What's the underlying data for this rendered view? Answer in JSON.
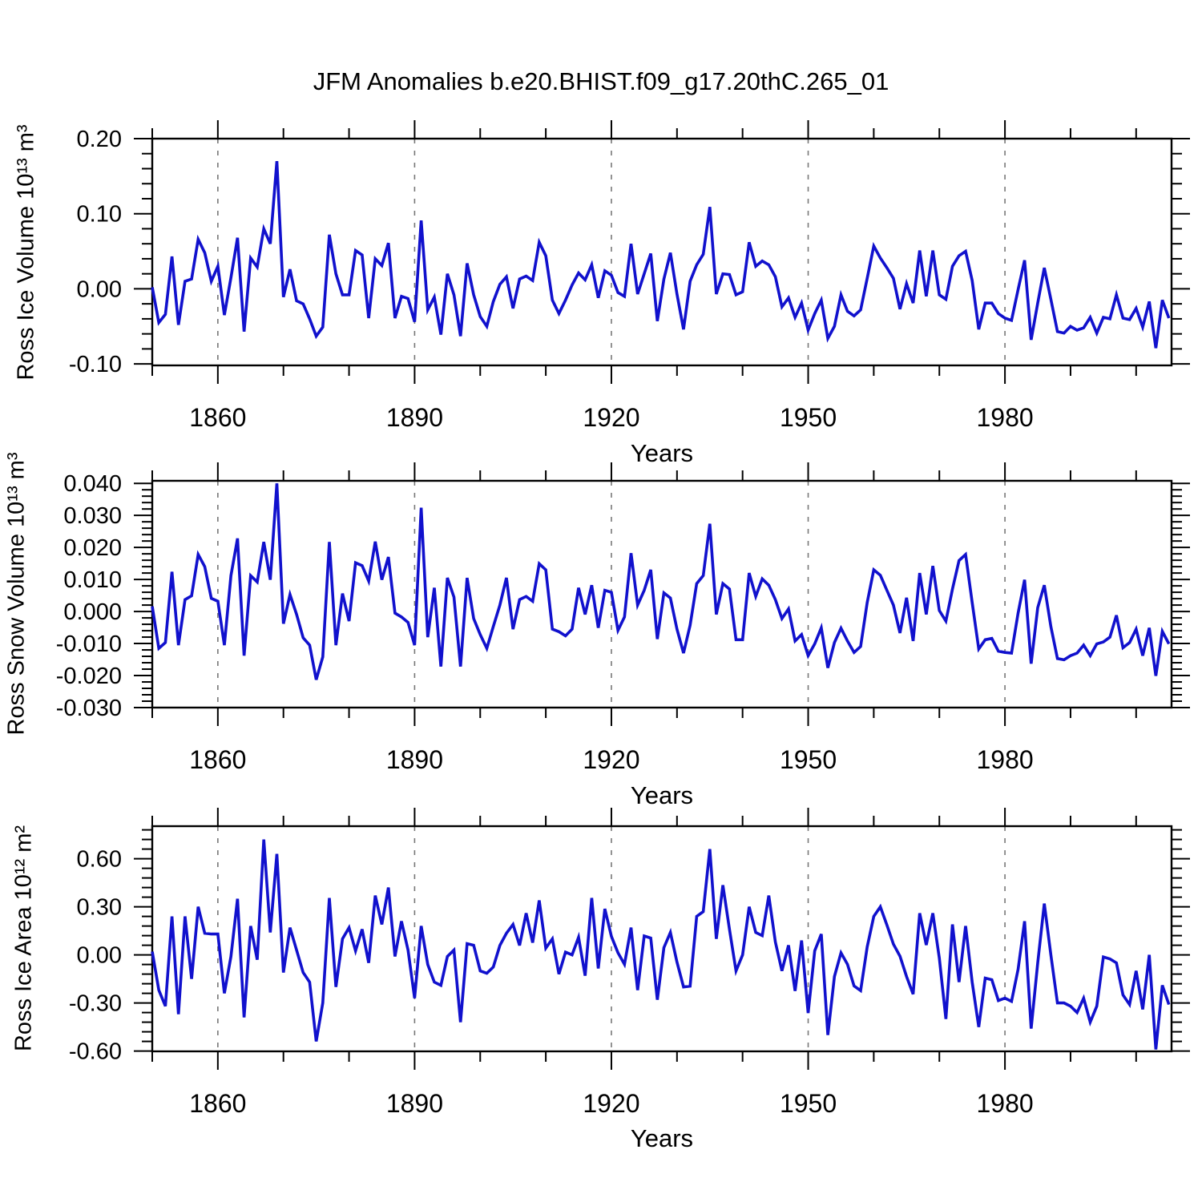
{
  "title": "JFM Anomalies b.e20.BHIST.f09_g17.20thC.265_01",
  "colors": {
    "line": "#1111cd",
    "frame": "#000000",
    "grid": "#787878",
    "background": "#ffffff",
    "text": "#000000"
  },
  "x_axis": {
    "label": "Years",
    "major_ticks": [
      1860,
      1890,
      1920,
      1950,
      1980
    ],
    "major_tick_labels": [
      "1860",
      "1890",
      "1920",
      "1950",
      "1980"
    ],
    "minor_tick_step": 10,
    "range": [
      1850,
      2005.4
    ],
    "dashed_gridlines_at": [
      1860,
      1890,
      1920,
      1950,
      1980
    ]
  },
  "chart_data": [
    {
      "type": "line",
      "ylabel": "Ross Ice Volume 10¹³ m³",
      "xlabel": "Years",
      "x_start": 1850,
      "x_step": 1,
      "ylim": [
        -0.102,
        0.2
      ],
      "yticks": [
        0.2,
        0.1,
        0.0,
        -0.1
      ],
      "ytick_labels": [
        "0.20",
        "0.10",
        "0.00",
        "-0.10"
      ],
      "y_minor_step": 0.02,
      "y_minor_range": [
        -0.1,
        0.2
      ],
      "values": [
        0.002,
        -0.045,
        -0.034,
        0.043,
        -0.048,
        0.01,
        0.013,
        0.066,
        0.048,
        0.01,
        0.03,
        -0.035,
        0.015,
        0.068,
        -0.057,
        0.041,
        0.029,
        0.08,
        0.06,
        0.17,
        -0.011,
        0.026,
        -0.016,
        -0.02,
        -0.04,
        -0.063,
        -0.051,
        0.072,
        0.02,
        -0.008,
        -0.008,
        0.051,
        0.045,
        -0.039,
        0.04,
        0.031,
        0.061,
        -0.039,
        -0.01,
        -0.013,
        -0.044,
        0.091,
        -0.028,
        -0.011,
        -0.061,
        0.02,
        -0.008,
        -0.063,
        0.034,
        -0.008,
        -0.037,
        -0.05,
        -0.017,
        0.006,
        0.016,
        -0.026,
        0.013,
        0.017,
        0.011,
        0.062,
        0.044,
        -0.015,
        -0.033,
        -0.015,
        0.005,
        0.021,
        0.012,
        0.032,
        -0.012,
        0.024,
        0.018,
        -0.005,
        -0.01,
        0.06,
        -0.007,
        0.02,
        0.047,
        -0.043,
        0.013,
        0.048,
        -0.007,
        -0.054,
        0.01,
        0.032,
        0.046,
        0.109,
        -0.007,
        0.02,
        0.019,
        -0.008,
        -0.004,
        0.062,
        0.03,
        0.037,
        0.032,
        0.016,
        -0.024,
        -0.012,
        -0.038,
        -0.019,
        -0.055,
        -0.033,
        -0.015,
        -0.066,
        -0.05,
        -0.008,
        -0.03,
        -0.036,
        -0.028,
        0.014,
        0.057,
        0.041,
        0.028,
        0.014,
        -0.027,
        0.007,
        -0.019,
        0.051,
        -0.01,
        0.051,
        -0.008,
        -0.014,
        0.03,
        0.044,
        0.05,
        0.011,
        -0.054,
        -0.019,
        -0.019,
        -0.033,
        -0.039,
        -0.042,
        -0.001,
        0.038,
        -0.068,
        -0.019,
        0.028,
        -0.014,
        -0.057,
        -0.059,
        -0.05,
        -0.055,
        -0.052,
        -0.038,
        -0.059,
        -0.038,
        -0.04,
        -0.008,
        -0.039,
        -0.041,
        -0.026,
        -0.051,
        -0.017,
        -0.079,
        -0.015,
        -0.039
      ]
    },
    {
      "type": "line",
      "ylabel": "Ross Snow Volume 10¹³ m³",
      "xlabel": "Years",
      "x_start": 1850,
      "x_step": 1,
      "ylim": [
        -0.03,
        0.0408
      ],
      "yticks": [
        0.04,
        0.03,
        0.02,
        0.01,
        0.0,
        -0.01,
        -0.02,
        -0.03
      ],
      "ytick_labels": [
        "0.040",
        "0.030",
        "0.020",
        "0.010",
        "0.000",
        "-0.010",
        "-0.020",
        "-0.030"
      ],
      "y_minor_step": 0.002,
      "y_minor_range": [
        -0.03,
        0.04
      ],
      "values": [
        0.0016,
        -0.0115,
        -0.0097,
        0.0124,
        -0.0105,
        0.0037,
        0.0049,
        0.0178,
        0.014,
        0.0041,
        0.0032,
        -0.0105,
        0.0112,
        0.0228,
        -0.0138,
        0.0112,
        0.0092,
        0.0217,
        0.0099,
        0.04,
        -0.0038,
        0.0053,
        -0.0009,
        -0.0082,
        -0.0105,
        -0.0213,
        -0.0142,
        0.0217,
        -0.0105,
        0.0056,
        -0.003,
        0.0152,
        0.0143,
        0.0095,
        0.0218,
        0.0099,
        0.017,
        -0.0005,
        -0.0017,
        -0.0034,
        -0.0105,
        0.0324,
        -0.008,
        0.0074,
        -0.0172,
        0.0105,
        0.0045,
        -0.0172,
        0.0105,
        -0.0022,
        -0.0072,
        -0.0115,
        -0.0047,
        0.002,
        0.0105,
        -0.0055,
        0.0037,
        0.0047,
        0.0032,
        0.0149,
        0.013,
        -0.0055,
        -0.0063,
        -0.0076,
        -0.0055,
        0.0074,
        -0.0009,
        0.0082,
        -0.0051,
        0.0066,
        0.006,
        -0.0059,
        -0.0017,
        0.0182,
        0.002,
        0.0066,
        0.013,
        -0.0086,
        0.0058,
        0.0042,
        -0.0055,
        -0.013,
        -0.0043,
        0.0087,
        0.0112,
        0.0274,
        -0.0009,
        0.0087,
        0.007,
        -0.0088,
        -0.0088,
        0.012,
        0.0047,
        0.0102,
        0.0082,
        0.0037,
        -0.0022,
        0.0008,
        -0.0092,
        -0.0072,
        -0.0138,
        -0.0101,
        -0.0051,
        -0.0176,
        -0.0097,
        -0.0052,
        -0.0092,
        -0.0128,
        -0.0109,
        0.0028,
        0.013,
        0.0113,
        0.0066,
        0.002,
        -0.0067,
        0.0043,
        -0.0092,
        0.012,
        -0.0009,
        0.0142,
        0.0003,
        -0.003,
        0.007,
        0.0159,
        0.0178,
        0.0028,
        -0.0117,
        -0.0088,
        -0.0084,
        -0.0124,
        -0.0128,
        -0.013,
        -0.0005,
        0.0099,
        -0.0163,
        0.0012,
        0.0082,
        -0.0047,
        -0.0147,
        -0.0151,
        -0.0138,
        -0.013,
        -0.0105,
        -0.0138,
        -0.0101,
        -0.0095,
        -0.008,
        -0.0012,
        -0.0113,
        -0.0097,
        -0.0055,
        -0.0138,
        -0.0051,
        -0.0201,
        -0.0062,
        -0.0101
      ]
    },
    {
      "type": "line",
      "ylabel": "Ross Ice Area 10¹² m²",
      "xlabel": "Years",
      "x_start": 1850,
      "x_step": 1,
      "ylim": [
        -0.602,
        0.803
      ],
      "yticks": [
        0.6,
        0.3,
        0.0,
        -0.3,
        -0.6
      ],
      "ytick_labels": [
        "0.60",
        "0.30",
        "0.00",
        "-0.30",
        "-0.60"
      ],
      "y_minor_step": 0.06,
      "y_minor_range": [
        -0.6,
        0.78
      ],
      "values": [
        0.02,
        -0.22,
        -0.32,
        0.24,
        -0.37,
        0.24,
        -0.15,
        0.3,
        0.135,
        0.13,
        0.13,
        -0.24,
        -0.01,
        0.35,
        -0.39,
        0.18,
        -0.03,
        0.72,
        0.14,
        0.63,
        -0.11,
        0.17,
        0.03,
        -0.11,
        -0.17,
        -0.54,
        -0.3,
        0.355,
        -0.2,
        0.1,
        0.17,
        0.025,
        0.16,
        -0.05,
        0.37,
        0.19,
        0.42,
        -0.01,
        0.21,
        0.03,
        -0.27,
        0.18,
        -0.06,
        -0.17,
        -0.19,
        -0.01,
        0.03,
        -0.42,
        0.07,
        0.06,
        -0.1,
        -0.115,
        -0.076,
        0.059,
        0.135,
        0.19,
        0.059,
        0.26,
        0.076,
        0.34,
        0.042,
        0.1,
        -0.12,
        0.017,
        0.0,
        0.11,
        -0.13,
        0.355,
        -0.085,
        0.287,
        0.115,
        0.013,
        -0.059,
        0.17,
        -0.22,
        0.118,
        0.105,
        -0.28,
        0.045,
        0.14,
        -0.045,
        -0.2,
        -0.195,
        0.24,
        0.27,
        0.66,
        0.1,
        0.435,
        0.16,
        -0.1,
        0.0,
        0.3,
        0.14,
        0.12,
        0.37,
        0.08,
        -0.1,
        0.06,
        -0.225,
        0.09,
        -0.363,
        0.025,
        0.13,
        -0.5,
        -0.135,
        0.013,
        -0.059,
        -0.194,
        -0.223,
        0.05,
        0.24,
        0.3,
        0.186,
        0.067,
        -0.008,
        -0.135,
        -0.245,
        0.26,
        0.062,
        0.26,
        -0.02,
        -0.4,
        0.19,
        -0.17,
        0.18,
        -0.17,
        -0.45,
        -0.145,
        -0.155,
        -0.285,
        -0.27,
        -0.29,
        -0.09,
        0.21,
        -0.46,
        -0.05,
        0.32,
        0.0,
        -0.3,
        -0.3,
        -0.32,
        -0.36,
        -0.27,
        -0.42,
        -0.32,
        -0.013,
        -0.025,
        -0.05,
        -0.25,
        -0.31,
        -0.1,
        -0.34,
        0.0,
        -0.59,
        -0.19,
        -0.31
      ]
    }
  ]
}
